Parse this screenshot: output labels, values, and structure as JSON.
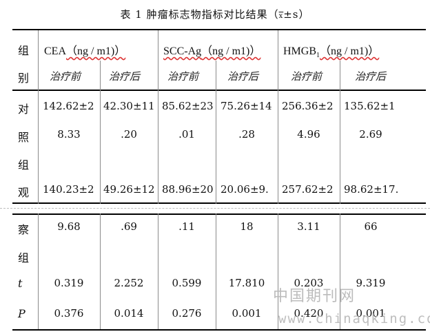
{
  "title": {
    "prefix": "表 1 肿瘤标志物指标对比结果（",
    "xbar": "x",
    "suffix": "±s）"
  },
  "columns": [
    {
      "name": "CEA",
      "unit": "（ng / m1)）"
    },
    {
      "name": "SCC-Ag",
      "unit": "（ng / m1)）"
    },
    {
      "name": "HMGB",
      "sub": "1",
      "unit": "（ng / m1)）"
    }
  ],
  "subheaders": [
    "治疗前",
    "治疗后",
    "治疗前",
    "治疗后",
    "治疗前",
    "治疗后"
  ],
  "group_chars": [
    "组",
    "别",
    "对",
    "照",
    "组",
    "观",
    "察",
    "组"
  ],
  "rows": {
    "control_a": [
      "142.62±2",
      "42.30±11",
      "85.62±23",
      "75.26±14",
      "256.36±2",
      "135.62±1"
    ],
    "control_b": [
      "8.33",
      ".20",
      ".01",
      ".28",
      "4.96",
      "2.69"
    ],
    "obs_a": [
      "140.23±2",
      "49.26±12",
      "88.96±20",
      "20.06±9.",
      "257.62±2",
      "98.62±17."
    ],
    "obs_b": [
      "9.68",
      ".69",
      ".11",
      "18",
      "3.11",
      "66"
    ],
    "t": {
      "label": "t",
      "values": [
        "0.319",
        "2.252",
        "0.599",
        "17.810",
        "0.203",
        "9.319"
      ]
    },
    "p": {
      "label": "P",
      "values": [
        "0.376",
        "0.014",
        "0.276",
        "0.001",
        "0.420",
        "0.001"
      ]
    }
  },
  "watermark": {
    "line1": "中国期刊网",
    "line2": "www.chinaqking.com"
  }
}
